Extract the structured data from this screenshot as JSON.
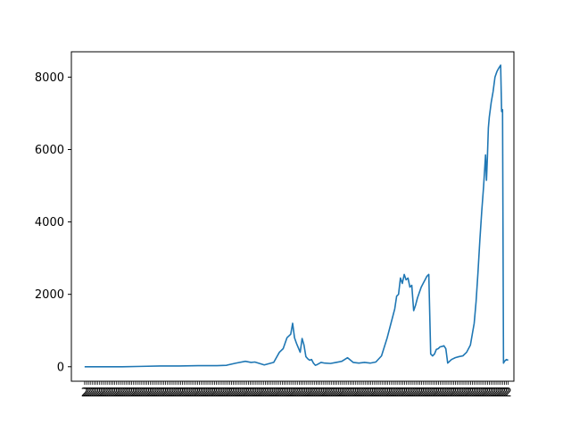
{
  "chart_data": {
    "type": "line",
    "title": "",
    "xlabel": "",
    "ylabel": "",
    "ylim": [
      -400,
      8700
    ],
    "xlim": [
      -7,
      227
    ],
    "grid": false,
    "legend": "none",
    "line_color": "#1f77b4",
    "x_tick_labels_note_text": "2",
    "y_ticks": [
      {
        "value": 0,
        "label": "0"
      },
      {
        "value": 2000,
        "label": "2000"
      },
      {
        "value": 4000,
        "label": "4000"
      },
      {
        "value": 6000,
        "label": "6000"
      },
      {
        "value": 8000,
        "label": "8000"
      }
    ],
    "series": [
      {
        "points": [
          [
            0,
            0
          ],
          [
            10,
            0
          ],
          [
            20,
            0
          ],
          [
            30,
            10
          ],
          [
            40,
            20
          ],
          [
            50,
            20
          ],
          [
            60,
            30
          ],
          [
            70,
            30
          ],
          [
            75,
            40
          ],
          [
            80,
            100
          ],
          [
            85,
            150
          ],
          [
            88,
            120
          ],
          [
            90,
            130
          ],
          [
            95,
            50
          ],
          [
            100,
            120
          ],
          [
            103,
            400
          ],
          [
            105,
            500
          ],
          [
            107,
            800
          ],
          [
            109,
            900
          ],
          [
            110,
            1200
          ],
          [
            111,
            800
          ],
          [
            112,
            650
          ],
          [
            114,
            400
          ],
          [
            115,
            780
          ],
          [
            116,
            600
          ],
          [
            117,
            280
          ],
          [
            118,
            220
          ],
          [
            119,
            180
          ],
          [
            120,
            200
          ],
          [
            121,
            100
          ],
          [
            122,
            40
          ],
          [
            123,
            60
          ],
          [
            125,
            120
          ],
          [
            127,
            100
          ],
          [
            130,
            90
          ],
          [
            133,
            120
          ],
          [
            136,
            150
          ],
          [
            139,
            250
          ],
          [
            142,
            120
          ],
          [
            145,
            100
          ],
          [
            148,
            120
          ],
          [
            151,
            100
          ],
          [
            154,
            130
          ],
          [
            157,
            300
          ],
          [
            160,
            800
          ],
          [
            162,
            1200
          ],
          [
            164,
            1600
          ],
          [
            165,
            1950
          ],
          [
            166,
            2000
          ],
          [
            167,
            2450
          ],
          [
            168,
            2300
          ],
          [
            169,
            2550
          ],
          [
            170,
            2400
          ],
          [
            171,
            2450
          ],
          [
            172,
            2200
          ],
          [
            173,
            2250
          ],
          [
            174,
            1550
          ],
          [
            175,
            1700
          ],
          [
            176,
            1900
          ],
          [
            177,
            2050
          ],
          [
            178,
            2200
          ],
          [
            179,
            2300
          ],
          [
            180,
            2400
          ],
          [
            181,
            2500
          ],
          [
            182,
            2550
          ],
          [
            183,
            350
          ],
          [
            184,
            300
          ],
          [
            185,
            350
          ],
          [
            186,
            480
          ],
          [
            187,
            500
          ],
          [
            188,
            550
          ],
          [
            189,
            560
          ],
          [
            190,
            580
          ],
          [
            191,
            500
          ],
          [
            192,
            100
          ],
          [
            193,
            150
          ],
          [
            194,
            200
          ],
          [
            196,
            250
          ],
          [
            198,
            280
          ],
          [
            200,
            300
          ],
          [
            202,
            400
          ],
          [
            204,
            600
          ],
          [
            205,
            900
          ],
          [
            206,
            1200
          ],
          [
            207,
            1800
          ],
          [
            208,
            2600
          ],
          [
            209,
            3500
          ],
          [
            210,
            4300
          ],
          [
            211,
            5000
          ],
          [
            212,
            5850
          ],
          [
            212.5,
            5150
          ],
          [
            213,
            5800
          ],
          [
            213.5,
            6600
          ],
          [
            214,
            6900
          ],
          [
            215,
            7300
          ],
          [
            216,
            7600
          ],
          [
            217,
            8000
          ],
          [
            218,
            8150
          ],
          [
            219,
            8250
          ],
          [
            220,
            8330
          ],
          [
            220.5,
            7050
          ],
          [
            221,
            7100
          ],
          [
            221.5,
            100
          ],
          [
            222,
            150
          ],
          [
            223,
            200
          ],
          [
            224,
            180
          ]
        ]
      }
    ]
  }
}
